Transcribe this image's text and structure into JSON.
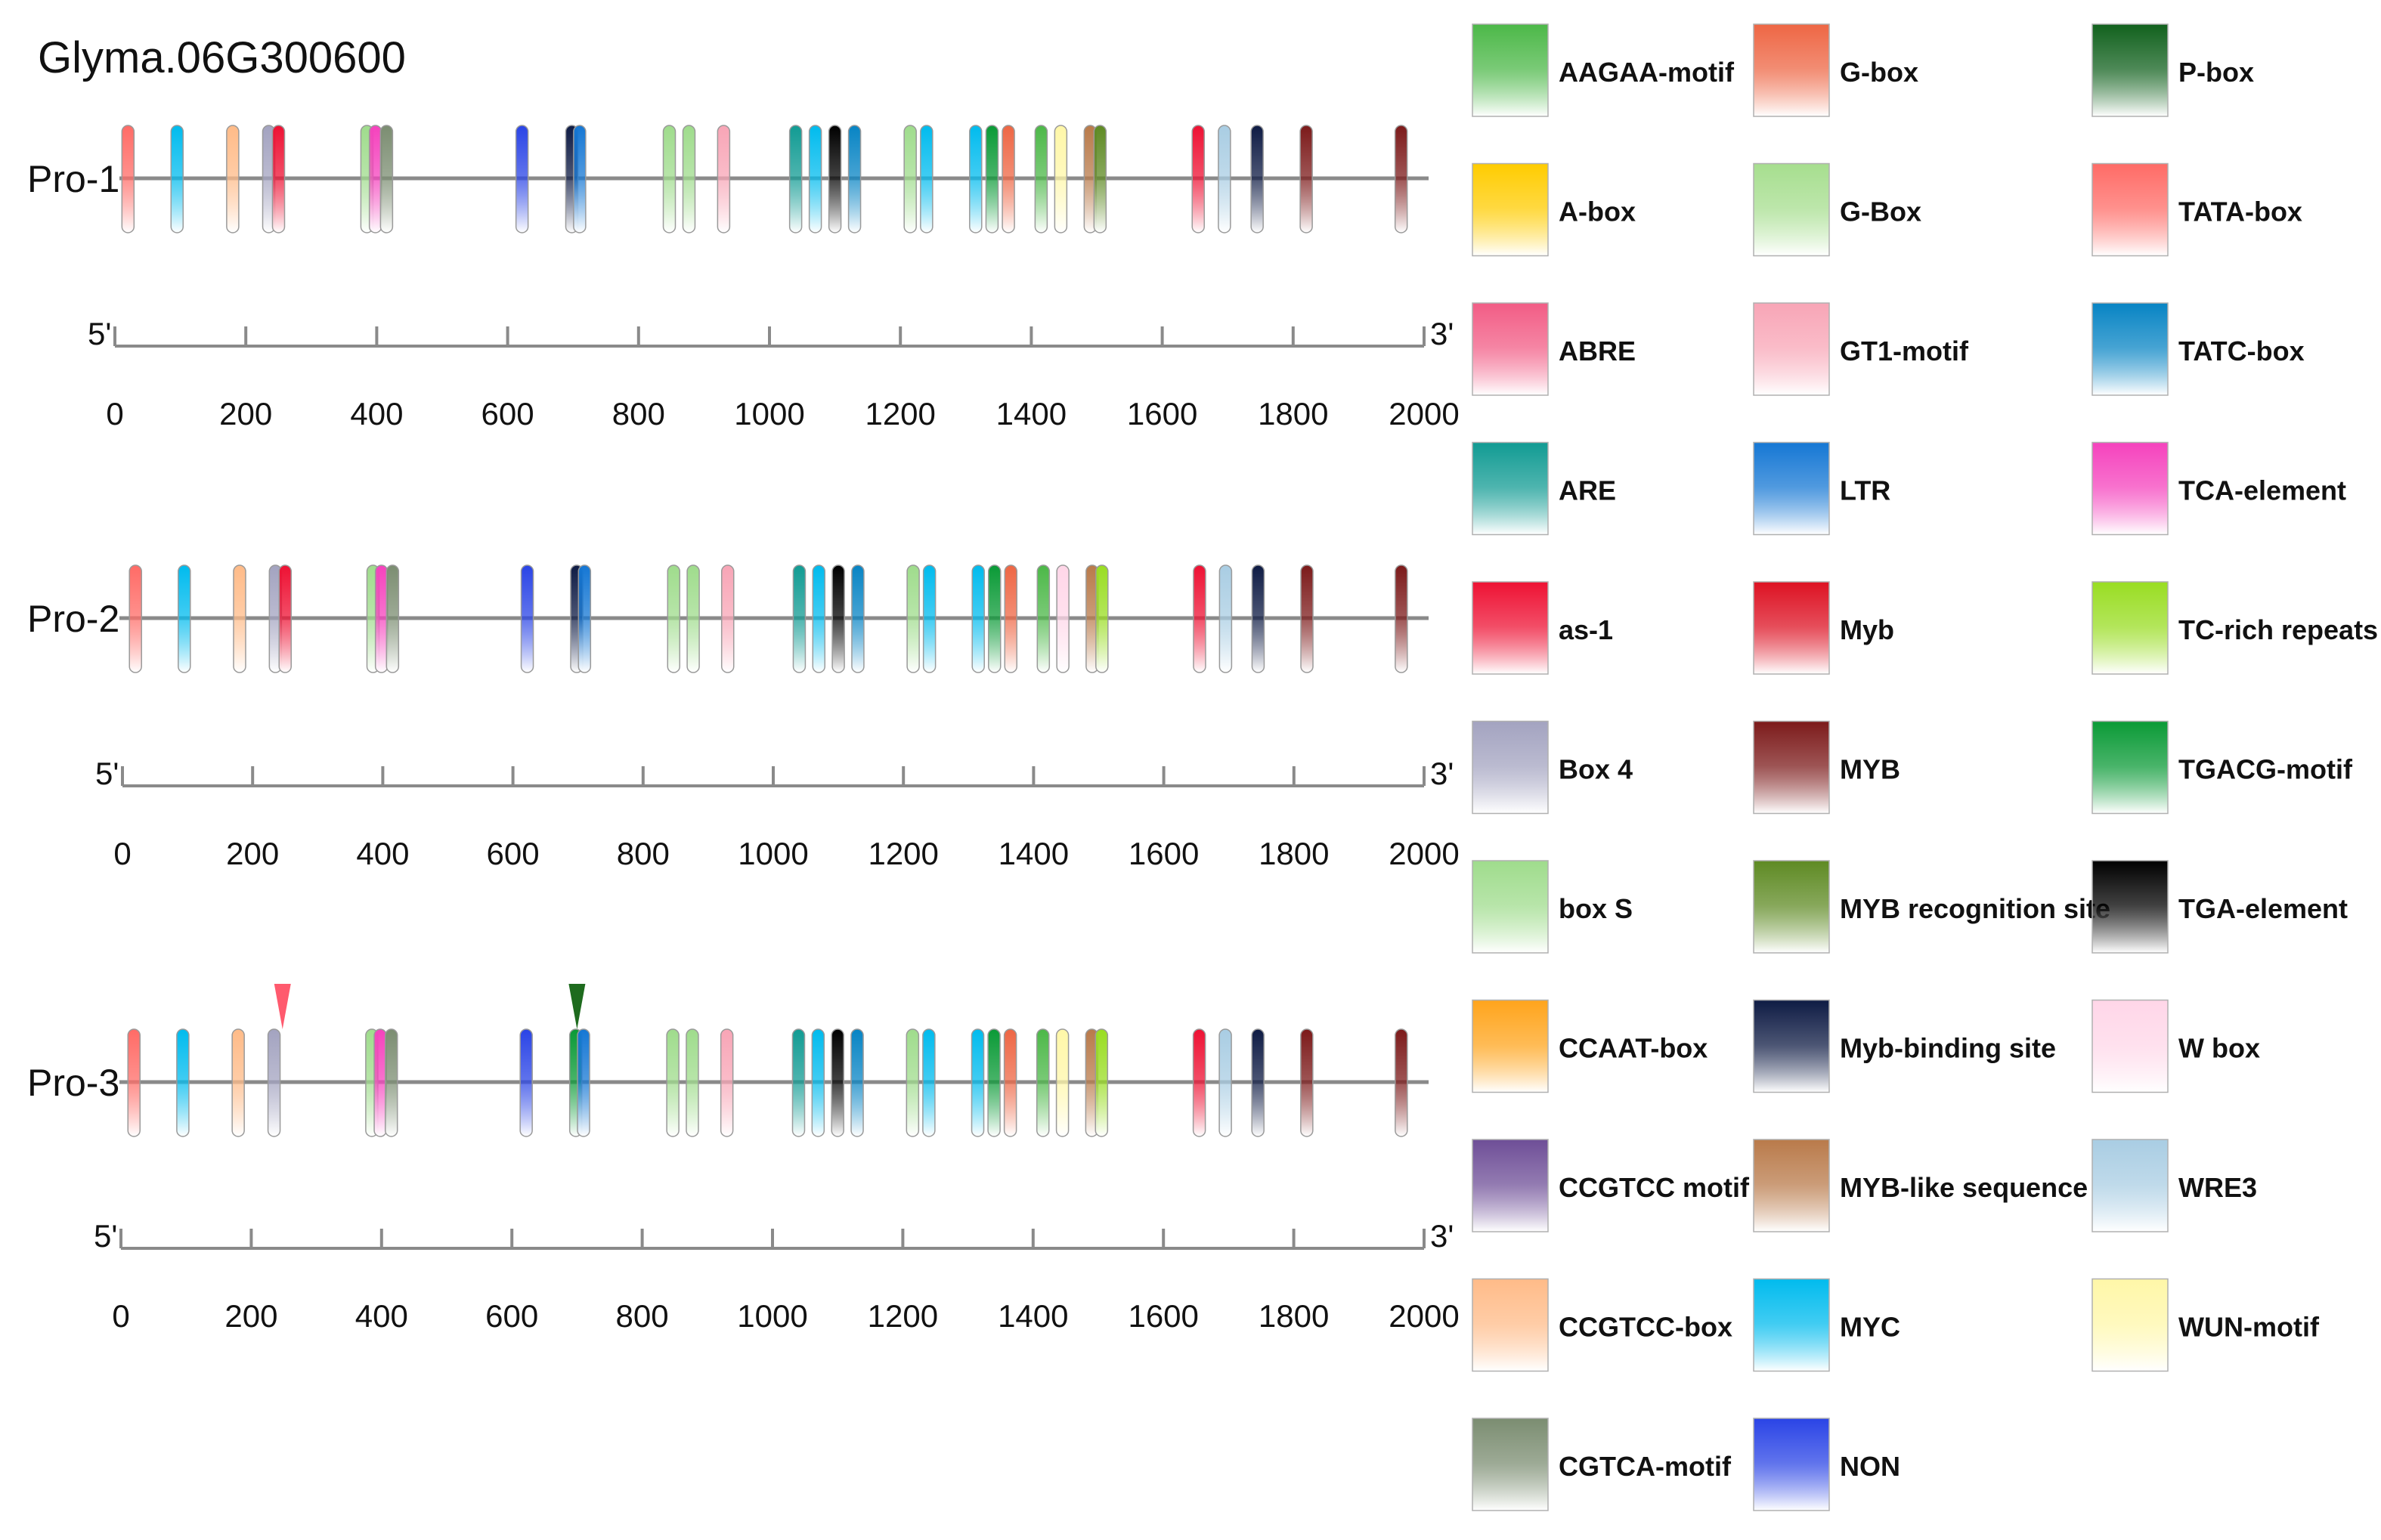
{
  "title": "Glyma.06G300600",
  "axis": {
    "min": 0,
    "max": 2000,
    "ticks": [
      0,
      200,
      400,
      600,
      800,
      1000,
      1200,
      1400,
      1600,
      1800,
      2000
    ],
    "left_end": "5'",
    "right_end": "3'"
  },
  "promoters": [
    {
      "label": "Pro-1",
      "elements": [
        {
          "pos": 20,
          "motif": "TATA-box"
        },
        {
          "pos": 95,
          "motif": "MYC"
        },
        {
          "pos": 180,
          "motif": "CCGTCC-box"
        },
        {
          "pos": 235,
          "motif": "Box 4"
        },
        {
          "pos": 250,
          "motif": "as-1"
        },
        {
          "pos": 385,
          "motif": "box S"
        },
        {
          "pos": 398,
          "motif": "TCA-element"
        },
        {
          "pos": 415,
          "motif": "CGTCA-motif"
        },
        {
          "pos": 622,
          "motif": "NON"
        },
        {
          "pos": 698,
          "motif": "Myb-binding site"
        },
        {
          "pos": 710,
          "motif": "LTR"
        },
        {
          "pos": 847,
          "motif": "box S"
        },
        {
          "pos": 877,
          "motif": "box S"
        },
        {
          "pos": 930,
          "motif": "GT1-motif"
        },
        {
          "pos": 1040,
          "motif": "ARE"
        },
        {
          "pos": 1070,
          "motif": "MYC"
        },
        {
          "pos": 1100,
          "motif": "TGA-element"
        },
        {
          "pos": 1130,
          "motif": "TATC-box"
        },
        {
          "pos": 1215,
          "motif": "box S"
        },
        {
          "pos": 1240,
          "motif": "MYC"
        },
        {
          "pos": 1315,
          "motif": "MYC"
        },
        {
          "pos": 1340,
          "motif": "TGACG-motif"
        },
        {
          "pos": 1365,
          "motif": "G-box"
        },
        {
          "pos": 1415,
          "motif": "AAGAA-motif"
        },
        {
          "pos": 1445,
          "motif": "WUN-motif"
        },
        {
          "pos": 1490,
          "motif": "MYB-like sequence"
        },
        {
          "pos": 1505,
          "motif": "MYB recognition site"
        },
        {
          "pos": 1655,
          "motif": "as-1"
        },
        {
          "pos": 1695,
          "motif": "WRE3"
        },
        {
          "pos": 1745,
          "motif": "Myb-binding site"
        },
        {
          "pos": 1820,
          "motif": "MYB"
        },
        {
          "pos": 1965,
          "motif": "MYB"
        }
      ]
    },
    {
      "label": "Pro-2",
      "elements": [
        {
          "pos": 20,
          "motif": "TATA-box"
        },
        {
          "pos": 95,
          "motif": "MYC"
        },
        {
          "pos": 180,
          "motif": "CCGTCC-box"
        },
        {
          "pos": 235,
          "motif": "Box 4"
        },
        {
          "pos": 250,
          "motif": "as-1"
        },
        {
          "pos": 385,
          "motif": "box S"
        },
        {
          "pos": 398,
          "motif": "TCA-element"
        },
        {
          "pos": 415,
          "motif": "CGTCA-motif"
        },
        {
          "pos": 622,
          "motif": "NON"
        },
        {
          "pos": 698,
          "motif": "Myb-binding site"
        },
        {
          "pos": 710,
          "motif": "LTR"
        },
        {
          "pos": 847,
          "motif": "box S"
        },
        {
          "pos": 877,
          "motif": "box S"
        },
        {
          "pos": 930,
          "motif": "GT1-motif"
        },
        {
          "pos": 1040,
          "motif": "ARE"
        },
        {
          "pos": 1070,
          "motif": "MYC"
        },
        {
          "pos": 1100,
          "motif": "TGA-element"
        },
        {
          "pos": 1130,
          "motif": "TATC-box"
        },
        {
          "pos": 1215,
          "motif": "box S"
        },
        {
          "pos": 1240,
          "motif": "MYC"
        },
        {
          "pos": 1315,
          "motif": "MYC"
        },
        {
          "pos": 1340,
          "motif": "TGACG-motif"
        },
        {
          "pos": 1365,
          "motif": "G-box"
        },
        {
          "pos": 1415,
          "motif": "AAGAA-motif"
        },
        {
          "pos": 1445,
          "motif": "W box"
        },
        {
          "pos": 1490,
          "motif": "MYB-like sequence"
        },
        {
          "pos": 1505,
          "motif": "TC-rich repeats"
        },
        {
          "pos": 1655,
          "motif": "as-1"
        },
        {
          "pos": 1695,
          "motif": "WRE3"
        },
        {
          "pos": 1745,
          "motif": "Myb-binding site"
        },
        {
          "pos": 1820,
          "motif": "MYB"
        },
        {
          "pos": 1965,
          "motif": "MYB"
        }
      ]
    },
    {
      "label": "Pro-3",
      "markers": [
        {
          "pos": 248,
          "color": "#ff5a6e"
        },
        {
          "pos": 700,
          "color": "#1e6b1e"
        }
      ],
      "elements": [
        {
          "pos": 20,
          "motif": "TATA-box"
        },
        {
          "pos": 95,
          "motif": "MYC"
        },
        {
          "pos": 180,
          "motif": "CCGTCC-box"
        },
        {
          "pos": 235,
          "motif": "Box 4"
        },
        {
          "pos": 385,
          "motif": "box S"
        },
        {
          "pos": 398,
          "motif": "TCA-element"
        },
        {
          "pos": 415,
          "motif": "CGTCA-motif"
        },
        {
          "pos": 622,
          "motif": "NON"
        },
        {
          "pos": 698,
          "motif": "TGACG-motif"
        },
        {
          "pos": 710,
          "motif": "LTR"
        },
        {
          "pos": 847,
          "motif": "box S"
        },
        {
          "pos": 877,
          "motif": "box S"
        },
        {
          "pos": 930,
          "motif": "GT1-motif"
        },
        {
          "pos": 1040,
          "motif": "ARE"
        },
        {
          "pos": 1070,
          "motif": "MYC"
        },
        {
          "pos": 1100,
          "motif": "TGA-element"
        },
        {
          "pos": 1130,
          "motif": "TATC-box"
        },
        {
          "pos": 1215,
          "motif": "box S"
        },
        {
          "pos": 1240,
          "motif": "MYC"
        },
        {
          "pos": 1315,
          "motif": "MYC"
        },
        {
          "pos": 1340,
          "motif": "TGACG-motif"
        },
        {
          "pos": 1365,
          "motif": "G-box"
        },
        {
          "pos": 1415,
          "motif": "AAGAA-motif"
        },
        {
          "pos": 1445,
          "motif": "WUN-motif"
        },
        {
          "pos": 1490,
          "motif": "MYB-like sequence"
        },
        {
          "pos": 1505,
          "motif": "TC-rich repeats"
        },
        {
          "pos": 1655,
          "motif": "as-1"
        },
        {
          "pos": 1695,
          "motif": "WRE3"
        },
        {
          "pos": 1745,
          "motif": "Myb-binding site"
        },
        {
          "pos": 1820,
          "motif": "MYB"
        },
        {
          "pos": 1965,
          "motif": "MYB"
        }
      ]
    }
  ],
  "legend": [
    {
      "label": "AAGAA-motif",
      "color": "#4cb848"
    },
    {
      "label": "A-box",
      "color": "#ffcc00"
    },
    {
      "label": "ABRE",
      "color": "#f25c85"
    },
    {
      "label": "ARE",
      "color": "#119b93"
    },
    {
      "label": "as-1",
      "color": "#ee1133"
    },
    {
      "label": "Box 4",
      "color": "#a3a3c0"
    },
    {
      "label": "box S",
      "color": "#9fdc8c"
    },
    {
      "label": "CCAAT-box",
      "color": "#ffa41b"
    },
    {
      "label": "CCGTCC motif",
      "color": "#6e4e97"
    },
    {
      "label": "CCGTCC-box",
      "color": "#ffbb88"
    },
    {
      "label": "CGTCA-motif",
      "color": "#7b8d71"
    },
    {
      "label": "G-box",
      "color": "#ee6644"
    },
    {
      "label": "G-Box",
      "color": "#a6de8e"
    },
    {
      "label": "GT1-motif",
      "color": "#f8a5b6"
    },
    {
      "label": "LTR",
      "color": "#1577d4"
    },
    {
      "label": "Myb",
      "color": "#dd1122"
    },
    {
      "label": "MYB",
      "color": "#7c1a1a"
    },
    {
      "label": "MYB recognition site",
      "color": "#5e8a23"
    },
    {
      "label": "Myb-binding site",
      "color": "#0e1b44"
    },
    {
      "label": "MYB-like sequence",
      "color": "#b97a4a"
    },
    {
      "label": "MYC",
      "color": "#00bbee"
    },
    {
      "label": "NON",
      "color": "#2a44e6"
    },
    {
      "label": "P-box",
      "color": "#11611d"
    },
    {
      "label": "TATA-box",
      "color": "#ff6b66"
    },
    {
      "label": "TATC-box",
      "color": "#0784c4"
    },
    {
      "label": "TCA-element",
      "color": "#f542bd"
    },
    {
      "label": "TC-rich repeats",
      "color": "#99dd22"
    },
    {
      "label": "TGACG-motif",
      "color": "#0a9a36"
    },
    {
      "label": "TGA-element",
      "color": "#000000"
    },
    {
      "label": "W box",
      "color": "#ffd6e8"
    },
    {
      "label": "WRE3",
      "color": "#a9cde3"
    },
    {
      "label": "WUN-motif",
      "color": "#fff7a8"
    }
  ]
}
